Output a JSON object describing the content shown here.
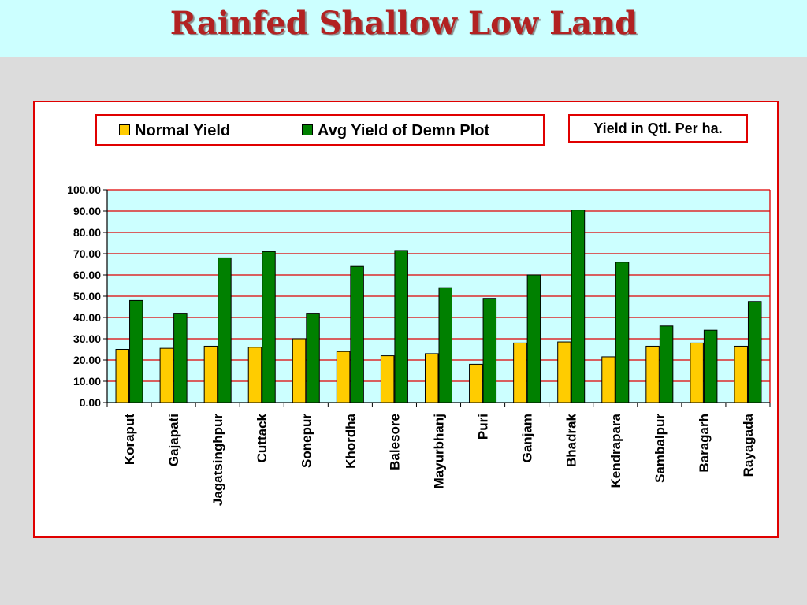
{
  "colors": {
    "title": "#b22222",
    "title_band": "#ccffff",
    "frame_border": "#e00000",
    "plot_background": "#ccffff",
    "gridline": "#e00000",
    "normal_yield": "#ffcc00",
    "demo_yield": "#008000"
  },
  "slide": {
    "title": "Rainfed Shallow Low Land"
  },
  "units_note": "Yield in Qtl. Per ha.",
  "chart_data": {
    "type": "bar",
    "title": "",
    "xlabel": "",
    "ylabel": "",
    "ylim": [
      0,
      100
    ],
    "y_ticks": [
      "0.00",
      "10.00",
      "20.00",
      "30.00",
      "40.00",
      "50.00",
      "60.00",
      "70.00",
      "80.00",
      "90.00",
      "100.00"
    ],
    "grid": true,
    "legend_position": "top",
    "categories": [
      "Koraput",
      "Gajapati",
      "Jagatsinghpur",
      "Cuttack",
      "Sonepur",
      "Khordha",
      "Balesore",
      "Mayurbhanj",
      "Puri",
      "Ganjam",
      "Bhadrak",
      "Kendrapara",
      "Sambalpur",
      "Baragarh",
      "Rayagada"
    ],
    "series": [
      {
        "name": "Normal Yield",
        "color": "#ffcc00",
        "values": [
          25,
          25.5,
          26.5,
          26,
          30,
          24,
          22,
          23,
          18,
          28,
          28.5,
          21.5,
          26.5,
          28,
          26.5
        ]
      },
      {
        "name": "Avg Yield of Demn Plot",
        "color": "#008000",
        "values": [
          48,
          42,
          68,
          71,
          42,
          64,
          71.5,
          54,
          49,
          60,
          90.5,
          66,
          36,
          34,
          47.5
        ]
      }
    ]
  }
}
